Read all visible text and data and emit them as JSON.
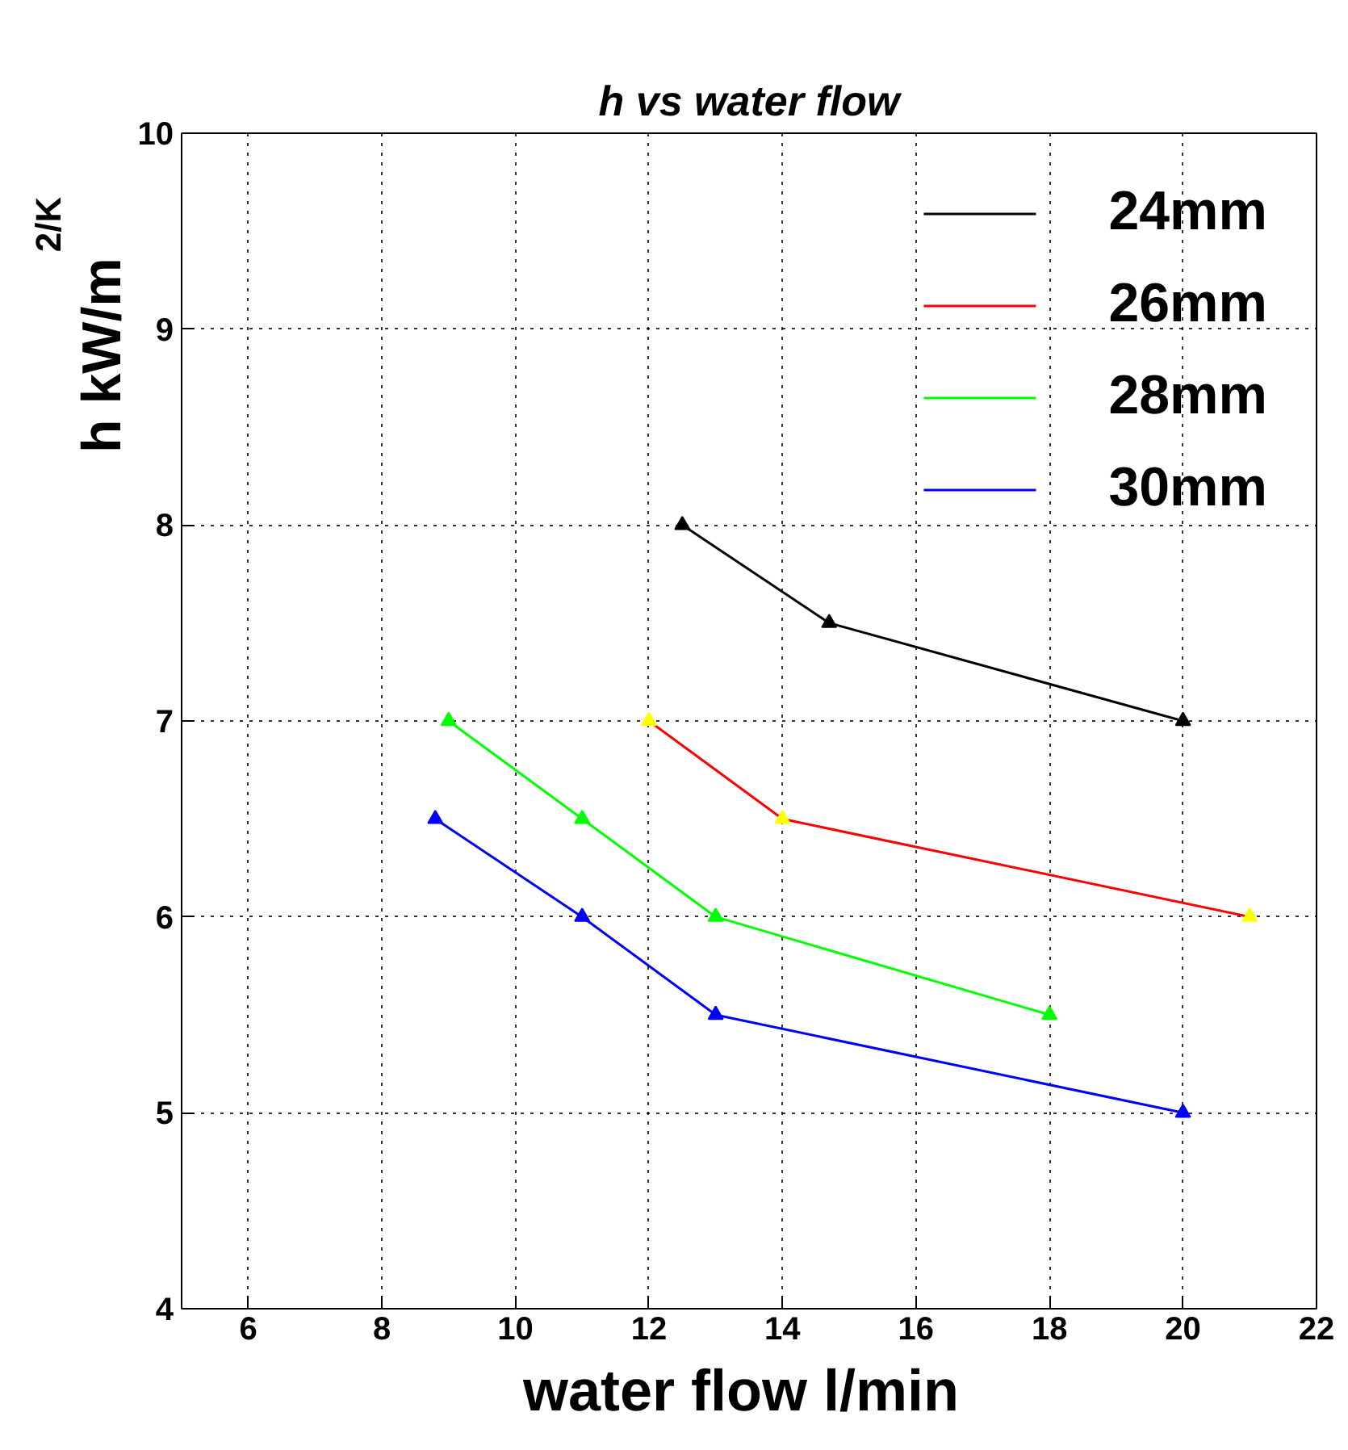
{
  "chart_data": {
    "type": "line",
    "title": "h vs water flow",
    "xlabel": "water flow  l/min",
    "ylabel": "h kW/m$^{2/K}$",
    "xlim": [
      5,
      22
    ],
    "xticks": [
      6,
      8,
      10,
      12,
      14,
      16,
      18,
      20,
      22
    ],
    "ylim": [
      4,
      10
    ],
    "yticks": [
      4,
      5,
      6,
      7,
      8,
      9,
      10
    ],
    "grid": true,
    "legend": "top right",
    "marker": "triangle",
    "line_style": "solid",
    "series": [
      {
        "name": "24mm",
        "color": "#000000",
        "x": [
          12.5,
          14.7,
          20
        ],
        "values": [
          8,
          7.5,
          7
        ]
      },
      {
        "name": "26mm",
        "color": "#ff0000",
        "colors": [
          "#ffff00",
          "#ffff00",
          "#ffff00"
        ],
        "x": [
          12,
          14,
          21
        ],
        "values": [
          7,
          6.5,
          6
        ]
      },
      {
        "name": "28mm",
        "color": "#00ff00",
        "x": [
          9,
          11,
          13,
          18
        ],
        "values": [
          7,
          6.5,
          6,
          5.5
        ]
      },
      {
        "name": "30mm",
        "color": "#0000ff",
        "x": [
          8.8,
          11,
          13,
          20
        ],
        "values": [
          6.5,
          6,
          5.5,
          5
        ]
      }
    ]
  }
}
